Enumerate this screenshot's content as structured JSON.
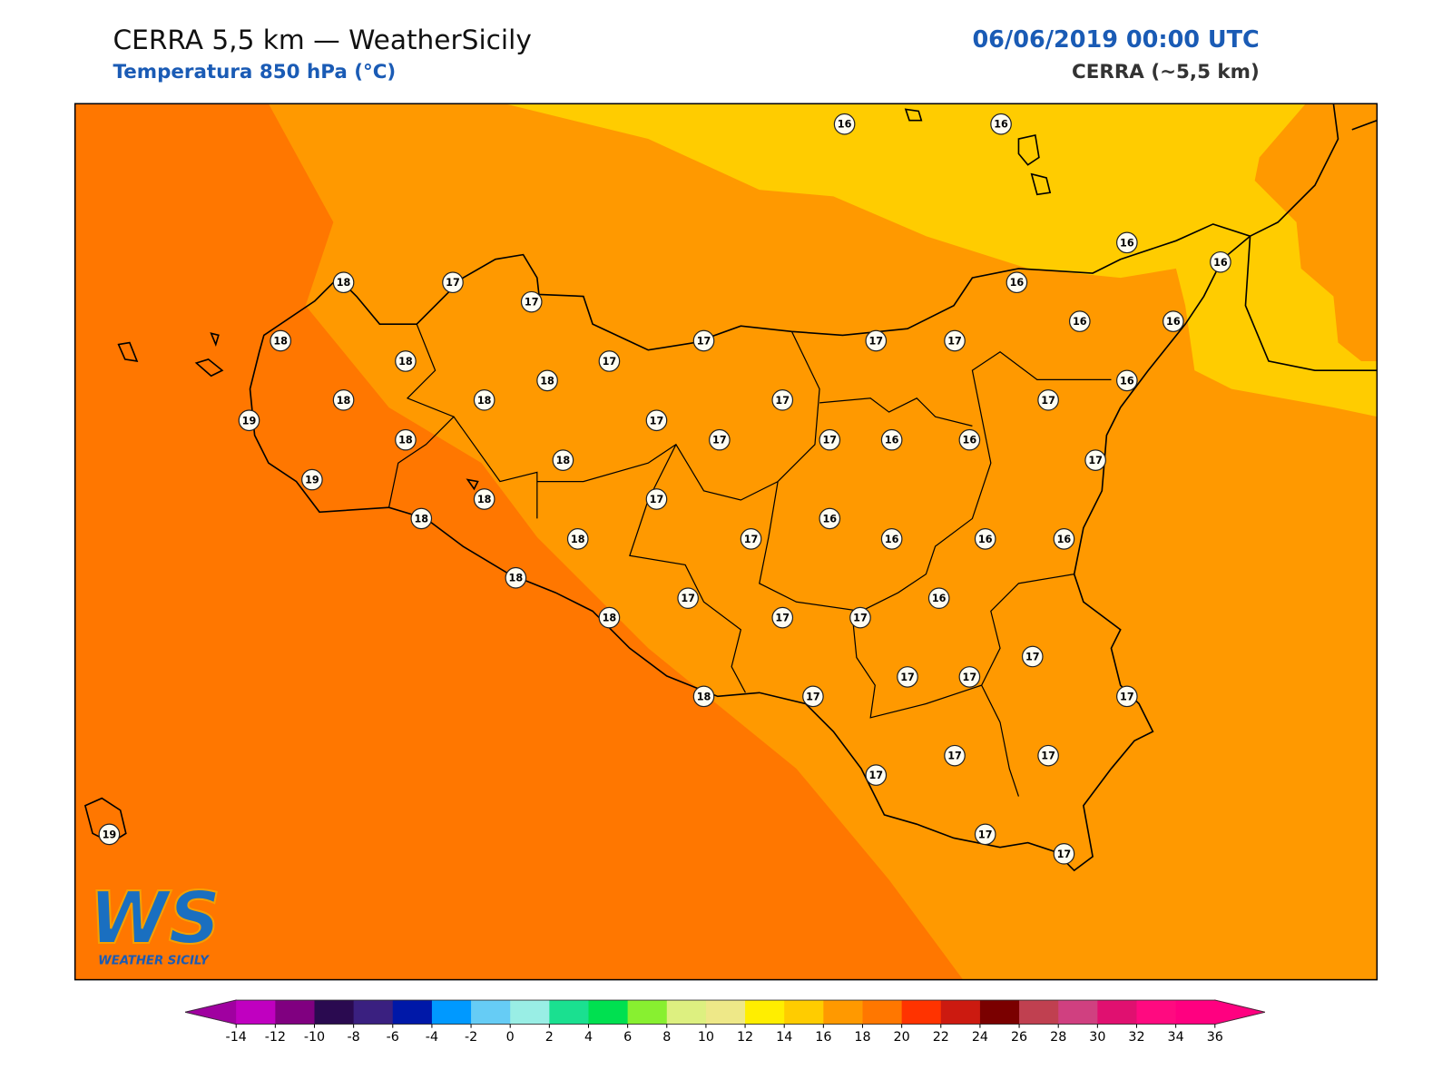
{
  "header": {
    "title": "CERRA 5,5 km — WeatherSicily",
    "subtitle": "Temperatura 850 hPa (°C)",
    "datetime": "06/06/2019 00:00 UTC",
    "model": "CERRA (~5,5 km)"
  },
  "map": {
    "stations": [
      16,
      16,
      18,
      17,
      17,
      16,
      16,
      16,
      18,
      18,
      17,
      17,
      17,
      17,
      16,
      16,
      18,
      16,
      19,
      18,
      18,
      17,
      17,
      17,
      18,
      17,
      17,
      16,
      16,
      19,
      18,
      17,
      18,
      17,
      18,
      16,
      18,
      17,
      16,
      16,
      16,
      18,
      16,
      17,
      18,
      17,
      17,
      17,
      17,
      17,
      18,
      17,
      17,
      17,
      17,
      17,
      17,
      17,
      19
    ]
  },
  "logo": {
    "mark": "WS",
    "name": "WEATHER SICILY"
  },
  "colorbar": {
    "ticks": [
      -14,
      -12,
      -10,
      -8,
      -6,
      -4,
      -2,
      0,
      2,
      4,
      6,
      8,
      10,
      12,
      14,
      16,
      18,
      20,
      22,
      24,
      26,
      28,
      30,
      32,
      34,
      36
    ],
    "colors": [
      "#c000c0",
      "#800080",
      "#2a0a50",
      "#3a2080",
      "#0018a8",
      "#0099ff",
      "#66ccf5",
      "#99eee5",
      "#1ae090",
      "#00e050",
      "#88f030",
      "#ddf080",
      "#eee888",
      "#ffee00",
      "#ffcc00",
      "#ff9900",
      "#ff7700",
      "#ff3300",
      "#cc1a10",
      "#7a0000",
      "#c04050",
      "#d04080",
      "#e01070",
      "#ff0a80",
      "#ff0080"
    ],
    "under": "#a000a0",
    "over": "#ff0080"
  }
}
